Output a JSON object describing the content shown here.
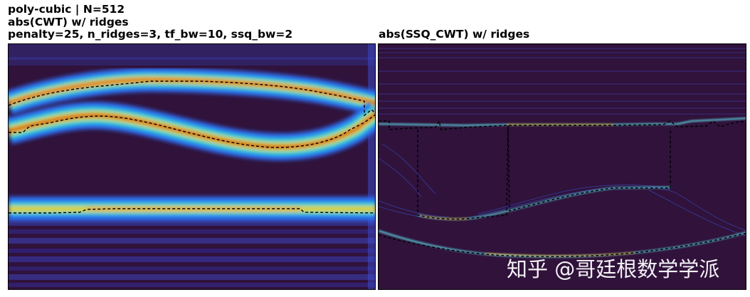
{
  "figure": {
    "left_title_line1": "poly-cubic | N=512",
    "left_title_line2": "abs(CWT) w/ ridges",
    "left_title_line3": "penalty=25, n_ridges=3, tf_bw=10, ssq_bw=2",
    "right_title": "abs(SSQ_CWT) w/ ridges",
    "watermark": "知乎 @哥廷根数学学派"
  },
  "colors": {
    "background_dark": "#30123b",
    "cwt_colormap": "jet",
    "ssq_line_cyan": "#5fe0e8",
    "ssq_line_yellow": "#f5e84a",
    "ridge_color": "#000000"
  }
}
